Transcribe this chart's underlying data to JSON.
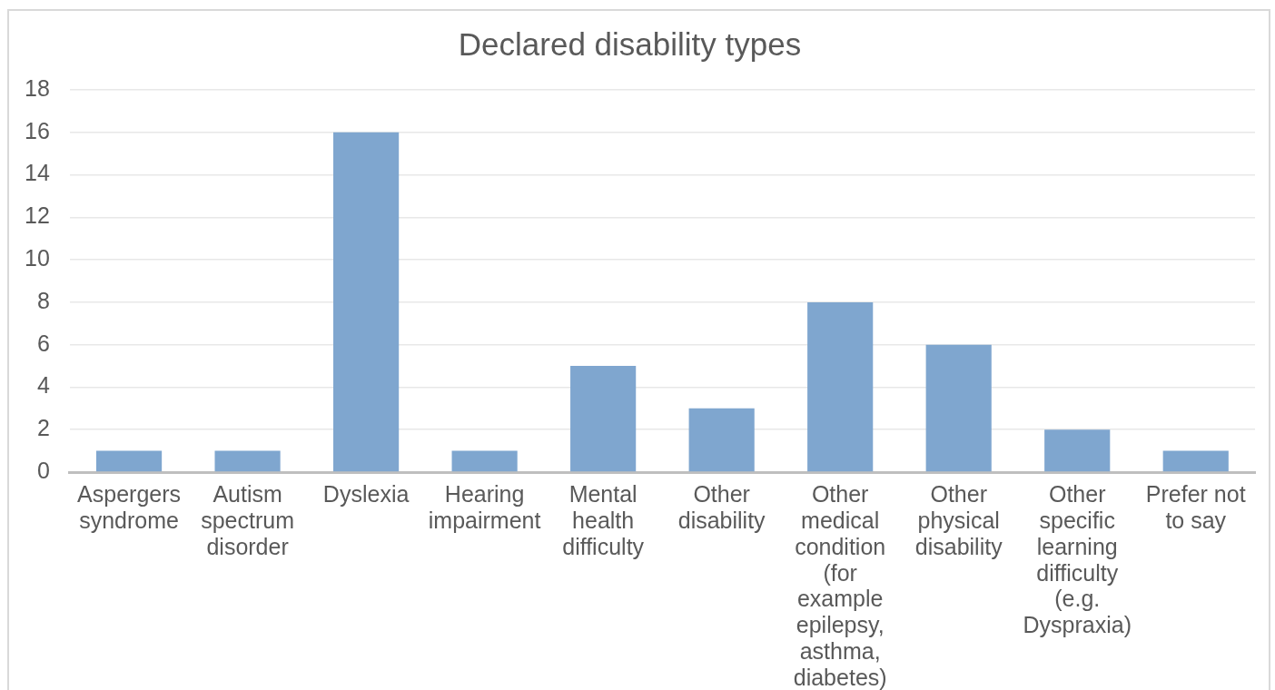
{
  "chart_data": {
    "type": "bar",
    "title": "Declared disability types",
    "categories": [
      "Aspergers syndrome",
      "Autism spectrum disorder",
      "Dyslexia",
      "Hearing impairment",
      "Mental health difficulty",
      "Other disability",
      "Other medical condition (for example epilepsy, asthma, diabetes)",
      "Other physical disability",
      "Other specific learning difficulty (e.g. Dyspraxia)",
      "Prefer not to say"
    ],
    "values": [
      1,
      1,
      16,
      1,
      5,
      3,
      8,
      6,
      2,
      1
    ],
    "color": "#7fa6cf",
    "ylim": [
      0,
      18
    ],
    "yticks": [
      0,
      2,
      4,
      6,
      8,
      10,
      12,
      14,
      16,
      18
    ],
    "grid": "y"
  }
}
